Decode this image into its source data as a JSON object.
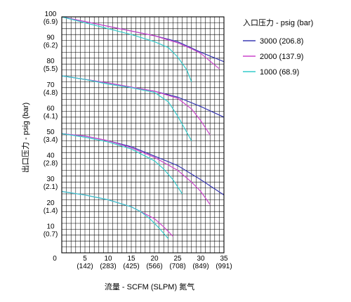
{
  "chart_data": {
    "type": "line",
    "title": "",
    "xlabel": "流量 - SCFM (SLPM) 氮气",
    "ylabel": "出口压力 - psig (bar)",
    "xlim": [
      0,
      35
    ],
    "ylim": [
      0,
      100
    ],
    "grid": true,
    "x_major_ticks": [
      {
        "value": 0,
        "label": "0",
        "sub": ""
      },
      {
        "value": 5,
        "label": "5",
        "sub": "(142)"
      },
      {
        "value": 10,
        "label": "10",
        "sub": "(283)"
      },
      {
        "value": 15,
        "label": "15",
        "sub": "(425)"
      },
      {
        "value": 20,
        "label": "20",
        "sub": "(566)"
      },
      {
        "value": 25,
        "label": "25",
        "sub": "(708)"
      },
      {
        "value": 30,
        "label": "30",
        "sub": "(849)"
      },
      {
        "value": 35,
        "label": "35",
        "sub": "(991)"
      }
    ],
    "y_major_ticks": [
      {
        "value": 10,
        "label": "10",
        "sub": "(0.7)"
      },
      {
        "value": 20,
        "label": "20",
        "sub": "(1.4)"
      },
      {
        "value": 30,
        "label": "30",
        "sub": "(2.1)"
      },
      {
        "value": 40,
        "label": "40",
        "sub": "(2.8)"
      },
      {
        "value": 50,
        "label": "50",
        "sub": "(3.4)"
      },
      {
        "value": 60,
        "label": "60",
        "sub": "(4.1)"
      },
      {
        "value": 70,
        "label": "70",
        "sub": "(4.8)"
      },
      {
        "value": 80,
        "label": "80",
        "sub": "(5.5)"
      },
      {
        "value": 90,
        "label": "90",
        "sub": "(6.2)"
      },
      {
        "value": 100,
        "label": "100",
        "sub": "(6.9)"
      }
    ],
    "origin_label": "0",
    "legend": {
      "title": "入口压力 - psig (bar)",
      "position": "right"
    },
    "series": [
      {
        "name": "3000 (206.8)",
        "color": "#3a3ab4",
        "curves": [
          [
            [
              0,
              100
            ],
            [
              5,
              98
            ],
            [
              10,
              96
            ],
            [
              15,
              94
            ],
            [
              20,
              92
            ],
            [
              25,
              89.5
            ],
            [
              30,
              85
            ],
            [
              35,
              81
            ]
          ],
          [
            [
              0,
              75
            ],
            [
              5,
              73.5
            ],
            [
              10,
              72
            ],
            [
              15,
              70.2
            ],
            [
              20,
              68.5
            ],
            [
              25,
              66
            ],
            [
              30,
              62
            ],
            [
              35,
              57.5
            ]
          ],
          [
            [
              0,
              50.5
            ],
            [
              5,
              49.5
            ],
            [
              10,
              47.5
            ],
            [
              15,
              45
            ],
            [
              20,
              41
            ],
            [
              25,
              37
            ],
            [
              30,
              31
            ],
            [
              35,
              24.5
            ]
          ]
        ]
      },
      {
        "name": "2000 (137.9)",
        "color": "#cc44cc",
        "curves": [
          [
            [
              0,
              100
            ],
            [
              5,
              98
            ],
            [
              10,
              96
            ],
            [
              15,
              94
            ],
            [
              20,
              92
            ],
            [
              25,
              89
            ],
            [
              28,
              86.5
            ],
            [
              30,
              84.5
            ],
            [
              34,
              78
            ]
          ],
          [
            [
              0,
              75
            ],
            [
              5,
              73.5
            ],
            [
              10,
              72
            ],
            [
              15,
              70.2
            ],
            [
              20,
              68.5
            ],
            [
              25,
              65.5
            ],
            [
              28,
              61
            ],
            [
              30,
              56
            ],
            [
              32,
              50
            ]
          ],
          [
            [
              0,
              50.5
            ],
            [
              5,
              49.5
            ],
            [
              10,
              47.5
            ],
            [
              15,
              44.5
            ],
            [
              20,
              40.5
            ],
            [
              25,
              35
            ],
            [
              28,
              30
            ],
            [
              30,
              26
            ],
            [
              32,
              20.5
            ]
          ],
          [
            [
              0,
              26
            ],
            [
              5,
              24.5
            ],
            [
              10,
              22.5
            ],
            [
              15,
              19.5
            ],
            [
              20,
              14.5
            ],
            [
              22,
              11
            ],
            [
              24,
              7
            ]
          ]
        ]
      },
      {
        "name": "1000 (68.9)",
        "color": "#33cccc",
        "curves": [
          [
            [
              0,
              100
            ],
            [
              5,
              97.5
            ],
            [
              10,
              95
            ],
            [
              15,
              92.5
            ],
            [
              20,
              89.5
            ],
            [
              23,
              87
            ],
            [
              25,
              83
            ],
            [
              27,
              77.5
            ],
            [
              28,
              72.5
            ]
          ],
          [
            [
              0,
              75
            ],
            [
              5,
              73.5
            ],
            [
              10,
              71.5
            ],
            [
              15,
              70
            ],
            [
              20,
              68
            ],
            [
              23,
              64
            ],
            [
              25,
              58
            ],
            [
              27,
              51
            ],
            [
              28,
              47.5
            ]
          ],
          [
            [
              0,
              50.5
            ],
            [
              5,
              49
            ],
            [
              10,
              47
            ],
            [
              15,
              44
            ],
            [
              20,
              39
            ],
            [
              22,
              35.5
            ],
            [
              24,
              31
            ],
            [
              26,
              25
            ]
          ],
          [
            [
              0,
              26
            ],
            [
              5,
              24.5
            ],
            [
              10,
              22.5
            ],
            [
              15,
              19.5
            ],
            [
              17,
              17.5
            ],
            [
              19,
              14.5
            ],
            [
              21,
              10.5
            ],
            [
              23,
              6
            ]
          ]
        ]
      }
    ]
  }
}
